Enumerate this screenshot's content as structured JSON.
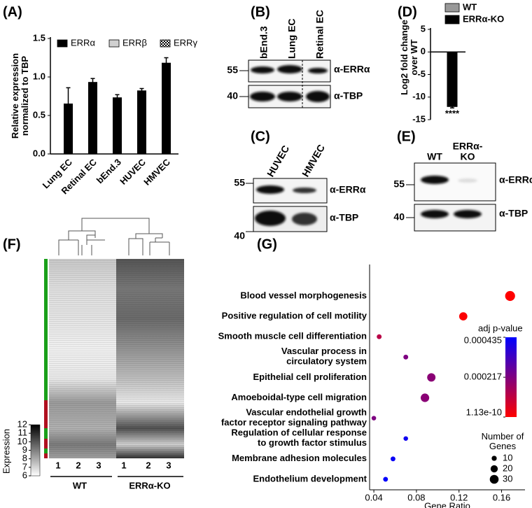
{
  "panel_labels": [
    "(A)",
    "(B)",
    "(C)",
    "(D)",
    "(E)",
    "(F)",
    "(G)"
  ],
  "chart_data": [
    {
      "type": "bar",
      "ylabel": "Relative expression\nnormalized to TBP",
      "categories": [
        "Lung EC",
        "Retinal EC",
        "bEnd.3",
        "HUVEC",
        "HMVEC"
      ],
      "series": [
        {
          "name": "ERRα",
          "color": "#000000",
          "values": [
            0.65,
            0.93,
            0.73,
            0.82,
            1.18
          ],
          "error": [
            0.21,
            0.05,
            0.04,
            0.03,
            0.07
          ]
        },
        {
          "name": "ERRβ",
          "color": "#d0d0d0",
          "values": [
            null,
            null,
            null,
            null,
            null
          ]
        },
        {
          "name": "ERRγ",
          "color": "#ffffff",
          "pattern": "checkered",
          "values": [
            null,
            null,
            null,
            null,
            null
          ]
        }
      ],
      "ylim": [
        0,
        1.5
      ],
      "yticks": [
        {
          "value": 0,
          "label": "0.0"
        },
        0.5,
        {
          "value": 1,
          "label": "1.0"
        },
        1.5
      ]
    },
    {
      "type": "bar",
      "ylabel": "Log2 fold change\nover WT",
      "series": [
        {
          "name": "WT",
          "color": "#999999",
          "values": [
            0
          ]
        },
        {
          "name": "ERRα-KO",
          "color": "#000000",
          "values": [
            -12.1
          ],
          "error": [
            0.3
          ]
        }
      ],
      "annotation": "****",
      "ylim": [
        -15,
        5
      ],
      "yticks": [
        5,
        0,
        -5,
        -10,
        -15
      ]
    },
    {
      "type": "scatter",
      "xlabel": "Gene Ratio",
      "categories": [
        "Blood vessel morphogenesis",
        "Positive regulation of cell motility",
        "Smooth muscle cell differentiation",
        "Vascular process in\ncirculatory system",
        "Epithelial cell proliferation",
        "Amoeboidal-type cell migration",
        "Vascular endothelial growth\nfactor receptor signaling pathway",
        "Regulation of cellular response\nto growth factor stimulus",
        "Membrane adhesion molecules",
        "Endothelium development"
      ],
      "values": [
        0.168,
        0.124,
        0.045,
        0.07,
        0.094,
        0.088,
        0.04,
        0.07,
        0.058,
        0.051
      ],
      "sizes": [
        38,
        26,
        9,
        9,
        27,
        28,
        8,
        8,
        9,
        9
      ],
      "pvalues": [
        1e-09,
        5e-06,
        0.00012,
        0.00022,
        0.0002,
        0.0002,
        0.00022,
        0.00041,
        0.00042,
        0.00043
      ],
      "xlim": [
        0.036,
        0.182
      ],
      "xticks": [
        0.04,
        0.08,
        0.12,
        0.16
      ],
      "colorbar": {
        "title": "adj p-value",
        "ticks": [
          0.000435,
          0.000217,
          1.13e-10
        ],
        "colors": [
          "#ff0000",
          "#0000ff"
        ]
      },
      "size_legend": {
        "title": "Number of\nGenes",
        "values": [
          10,
          20,
          30
        ]
      }
    }
  ],
  "blots": [
    {
      "lanes": [
        "bEnd.3",
        "Lung EC",
        "Retinal EC"
      ],
      "markers": [
        55,
        40
      ],
      "antibodies": [
        "α-ERRα",
        "α-TBP"
      ]
    },
    {
      "lanes": [
        "HUVEC",
        "HMVEC"
      ],
      "markers": [
        55,
        40
      ],
      "antibodies": [
        "α-ERRα",
        "α-TBP"
      ]
    },
    {
      "lanes": [
        "WT",
        "ERRα-\nKO"
      ],
      "markers": [
        55,
        40
      ],
      "antibodies": [
        "α-ERRα",
        "α-TBP"
      ]
    }
  ],
  "heatmap": {
    "colorbar_label": "Expression",
    "colorbar_ticks": [
      6,
      7,
      8,
      9,
      10,
      11,
      12
    ],
    "columns": [
      "1",
      "2",
      "3",
      "1",
      "2",
      "3"
    ],
    "groups": [
      "WT",
      "ERRα-KO"
    ]
  }
}
